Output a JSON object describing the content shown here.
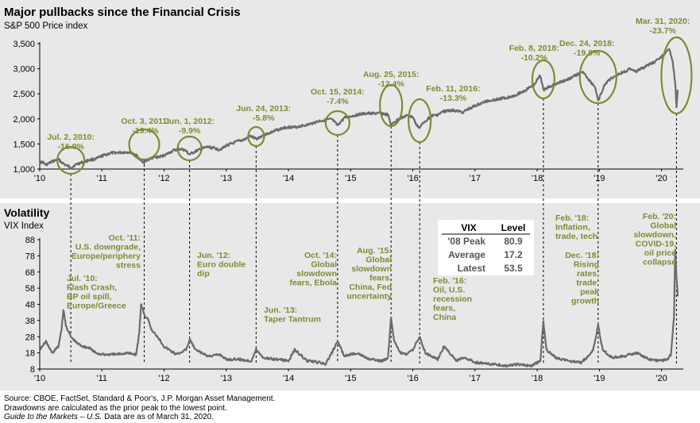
{
  "colors": {
    "panel_bg": "#e8e8e8",
    "line": "#6b6b6b",
    "accent": "#7f8a33",
    "text": "#000000",
    "table_bg": "#ffffff"
  },
  "top_title": "Major pullbacks since the Financial Crisis",
  "top_subtitle": "S&P 500 Price index",
  "bottom_title": "Volatility",
  "bottom_subtitle": "VIX Index",
  "vix_table": {
    "headers": [
      "VIX",
      "Level"
    ],
    "rows": [
      {
        "label": "'08 Peak",
        "value": "80.9"
      },
      {
        "label": "Average",
        "value": "17.2"
      },
      {
        "label": "Latest",
        "value": "53.5"
      }
    ]
  },
  "footer": {
    "line1": "Source: CBOE, FactSet, Standard & Poor's, J.P. Morgan Asset Management.",
    "line2": "Drawdowns are calculated as the prior peak to the lowest point.",
    "line3_italic": "Guide to the Markets – U.S.",
    "line3_rest": " Data are as of March 31, 2020."
  },
  "chart_data": [
    {
      "type": "line",
      "title": "Major pullbacks since the Financial Crisis",
      "subtitle": "S&P 500 Price index",
      "xlabel": "",
      "ylabel": "",
      "xlim": [
        2010.0,
        2020.35
      ],
      "ylim": [
        1000,
        3500
      ],
      "x_tick_labels": [
        "'10",
        "'11",
        "'12",
        "'13",
        "'14",
        "'15",
        "'16",
        "'17",
        "'18",
        "'19",
        "'20"
      ],
      "y_ticks": [
        1000,
        1500,
        2000,
        2500,
        3000,
        3500
      ],
      "y_tick_labels": [
        "1,000",
        "1,500",
        "2,000",
        "2,500",
        "3,000",
        "3,500"
      ],
      "grid": false,
      "series": [
        {
          "x": [
            2010.0,
            2010.05,
            2010.1,
            2010.2,
            2010.3,
            2010.4,
            2010.5,
            2010.6,
            2010.7,
            2010.8,
            2010.9,
            2011.0,
            2011.15,
            2011.3,
            2011.45,
            2011.55,
            2011.62,
            2011.68,
            2011.76,
            2011.85,
            2011.95,
            2012.05,
            2012.15,
            2012.25,
            2012.33,
            2012.41,
            2012.5,
            2012.6,
            2012.7,
            2012.8,
            2012.88,
            2012.95,
            2013.0,
            2013.1,
            2013.2,
            2013.3,
            2013.38,
            2013.48,
            2013.6,
            2013.7,
            2013.8,
            2013.9,
            2014.0,
            2014.1,
            2014.2,
            2014.3,
            2014.4,
            2014.5,
            2014.6,
            2014.7,
            2014.79,
            2014.9,
            2015.0,
            2015.1,
            2015.2,
            2015.3,
            2015.4,
            2015.5,
            2015.6,
            2015.65,
            2015.7,
            2015.8,
            2015.9,
            2016.0,
            2016.06,
            2016.11,
            2016.2,
            2016.3,
            2016.4,
            2016.5,
            2016.6,
            2016.7,
            2016.8,
            2016.9,
            2017.0,
            2017.2,
            2017.4,
            2017.6,
            2017.8,
            2017.95,
            2018.05,
            2018.1,
            2018.2,
            2018.35,
            2018.5,
            2018.65,
            2018.75,
            2018.85,
            2018.93,
            2018.98,
            2019.1,
            2019.25,
            2019.4,
            2019.5,
            2019.6,
            2019.75,
            2019.9,
            2020.0,
            2020.13,
            2020.18,
            2020.22,
            2020.24,
            2020.26
          ],
          "y": [
            1130,
            1140,
            1080,
            1150,
            1190,
            1090,
            1030,
            1100,
            1140,
            1180,
            1200,
            1260,
            1320,
            1330,
            1340,
            1280,
            1170,
            1140,
            1200,
            1230,
            1250,
            1300,
            1370,
            1400,
            1380,
            1290,
            1350,
            1400,
            1440,
            1420,
            1390,
            1420,
            1470,
            1510,
            1560,
            1590,
            1660,
            1600,
            1680,
            1720,
            1770,
            1810,
            1840,
            1830,
            1860,
            1880,
            1920,
            1960,
            1980,
            1990,
            1870,
            2020,
            2050,
            2080,
            2100,
            2110,
            2110,
            2110,
            2080,
            1870,
            1930,
            2020,
            2060,
            2040,
            1870,
            1830,
            1960,
            2060,
            2080,
            2150,
            2170,
            2160,
            2130,
            2200,
            2260,
            2360,
            2400,
            2450,
            2560,
            2690,
            2860,
            2580,
            2650,
            2720,
            2790,
            2890,
            2920,
            2750,
            2640,
            2350,
            2720,
            2860,
            2940,
            3000,
            2950,
            3050,
            3150,
            3230,
            3390,
            3150,
            2700,
            2240,
            2580
          ]
        }
      ],
      "annotations": [
        {
          "label": "Jul. 2, 2010:",
          "value": "-16.0%"
        },
        {
          "label": "Oct. 3, 2011:",
          "value": "-19.4%"
        },
        {
          "label": "Jun. 1, 2012:",
          "value": "-9.9%"
        },
        {
          "label": "Jun. 24, 2013:",
          "value": "-5.8%"
        },
        {
          "label": "Oct. 15, 2014:",
          "value": "-7.4%"
        },
        {
          "label": "Aug. 25, 2015:",
          "value": "-12.4%"
        },
        {
          "label": "Feb. 11, 2016:",
          "value": "-13.3%"
        },
        {
          "label": "Feb. 8, 2018:",
          "value": "-10.2%"
        },
        {
          "label": "Dec. 24, 2018:",
          "value": "-19.8%"
        },
        {
          "label": "Mar. 31, 2020:",
          "value": "-23.7%"
        }
      ]
    },
    {
      "type": "line",
      "title": "Volatility",
      "subtitle": "VIX Index",
      "xlabel": "",
      "ylabel": "",
      "xlim": [
        2010.0,
        2020.35
      ],
      "ylim": [
        8,
        88
      ],
      "x_tick_labels": [
        "'10",
        "'11",
        "'12",
        "'13",
        "'14",
        "'15",
        "'16",
        "'17",
        "'18",
        "'19",
        "'20"
      ],
      "y_ticks": [
        8,
        18,
        28,
        38,
        48,
        58,
        68,
        78,
        88
      ],
      "y_tick_labels": [
        "8",
        "18",
        "28",
        "38",
        "48",
        "58",
        "68",
        "78",
        "88"
      ],
      "grid": false,
      "series": [
        {
          "x": [
            2010.0,
            2010.1,
            2010.2,
            2010.3,
            2010.35,
            2010.38,
            2010.42,
            2010.5,
            2010.6,
            2010.7,
            2010.8,
            2010.9,
            2011.0,
            2011.2,
            2011.4,
            2011.55,
            2011.6,
            2011.63,
            2011.7,
            2011.75,
            2011.8,
            2011.9,
            2012.0,
            2012.2,
            2012.35,
            2012.42,
            2012.5,
            2012.7,
            2012.9,
            2013.0,
            2013.2,
            2013.4,
            2013.48,
            2013.6,
            2013.8,
            2014.0,
            2014.1,
            2014.3,
            2014.5,
            2014.6,
            2014.79,
            2014.9,
            2015.0,
            2015.1,
            2015.3,
            2015.5,
            2015.6,
            2015.65,
            2015.7,
            2015.8,
            2015.9,
            2016.0,
            2016.11,
            2016.2,
            2016.4,
            2016.5,
            2016.7,
            2016.8,
            2016.9,
            2017.0,
            2017.3,
            2017.5,
            2017.7,
            2017.9,
            2018.05,
            2018.1,
            2018.15,
            2018.3,
            2018.5,
            2018.7,
            2018.8,
            2018.9,
            2018.98,
            2019.05,
            2019.2,
            2019.4,
            2019.6,
            2019.8,
            2020.0,
            2020.1,
            2020.15,
            2020.2,
            2020.22,
            2020.24,
            2020.26
          ],
          "y": [
            20,
            25,
            18,
            22,
            32,
            45,
            35,
            28,
            24,
            22,
            21,
            18,
            17,
            17,
            18,
            17,
            30,
            48,
            40,
            38,
            32,
            28,
            22,
            17,
            20,
            26,
            20,
            16,
            17,
            14,
            14,
            13,
            20,
            15,
            14,
            13,
            20,
            13,
            12,
            11,
            25,
            16,
            17,
            18,
            14,
            13,
            15,
            40,
            25,
            18,
            17,
            20,
            28,
            18,
            14,
            22,
            13,
            15,
            14,
            12,
            11,
            10,
            11,
            10,
            13,
            37,
            20,
            15,
            13,
            12,
            15,
            20,
            35,
            20,
            15,
            16,
            18,
            14,
            13,
            14,
            17,
            40,
            82,
            65,
            53
          ]
        }
      ],
      "annotations": [
        {
          "lines": [
            "Jul. '10:",
            "Flash Crash,",
            "BP oil spill,",
            "Europe/Greece"
          ]
        },
        {
          "lines": [
            "Oct. '11:",
            "U.S. downgrade,",
            "Europe/periphery",
            "stress"
          ]
        },
        {
          "lines": [
            "Jun. '12:",
            "Euro double",
            "dip"
          ]
        },
        {
          "lines": [
            "Jun. '13:",
            "Taper Tantrum"
          ]
        },
        {
          "lines": [
            "Oct. '14:",
            "Global",
            "slowdown",
            "fears, Ebola"
          ]
        },
        {
          "lines": [
            "Aug. '15:",
            "Global",
            "slowdown",
            "fears,",
            "China, Fed",
            "uncertainty"
          ]
        },
        {
          "lines": [
            "Feb. '16:",
            "Oil, U.S.",
            "recession",
            "fears,",
            "China"
          ]
        },
        {
          "lines": [
            "Feb. '18:",
            "Inflation,",
            "trade, tech"
          ]
        },
        {
          "lines": [
            "Dec. '18:",
            "Rising",
            "rates,",
            "trade,",
            "peak",
            "growth"
          ]
        },
        {
          "lines": [
            "Feb. '20:",
            "Global",
            "slowdown,",
            "COVID-19,",
            "oil price",
            "collapse"
          ]
        }
      ]
    }
  ]
}
